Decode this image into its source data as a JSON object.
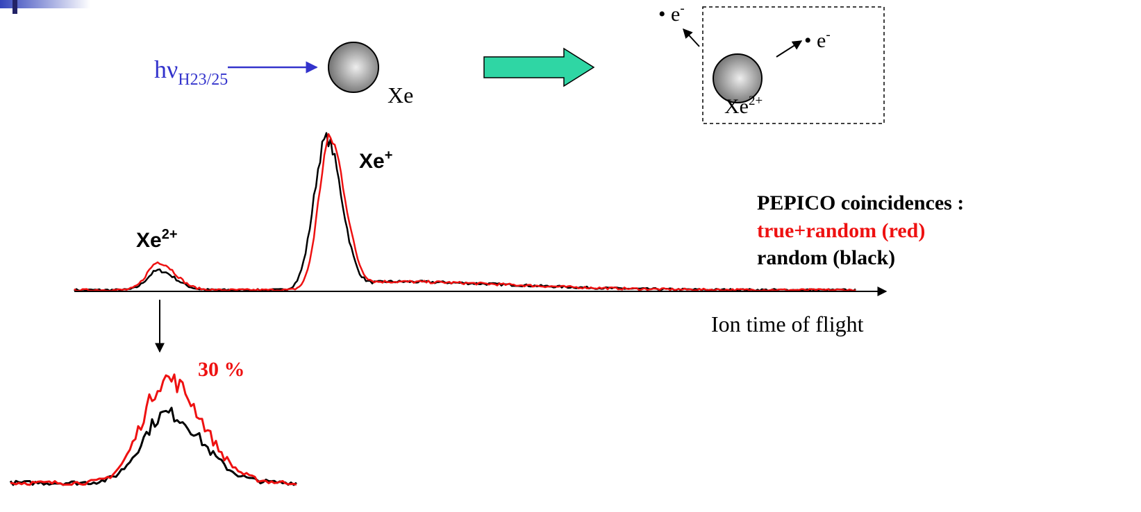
{
  "excitation": {
    "symbol": "hν",
    "subscript": "H23/25"
  },
  "atom": {
    "label": "Xe"
  },
  "ionized": {
    "ion": "Xe",
    "ion_charge": "2+",
    "electrons": [
      {
        "symbol": "• e",
        "charge": "-"
      },
      {
        "symbol": "• e",
        "charge": "-"
      }
    ]
  },
  "spectrum": {
    "peaks": [
      {
        "label": "Xe",
        "charge": "2+"
      },
      {
        "label": "Xe",
        "charge": "+"
      }
    ],
    "axis_label": "Ion time of flight"
  },
  "legend": {
    "title": "PEPICO coincidences :",
    "lines": [
      "true+random (red)",
      "random (black)"
    ]
  },
  "zoom": {
    "annotation": "30 %"
  }
}
